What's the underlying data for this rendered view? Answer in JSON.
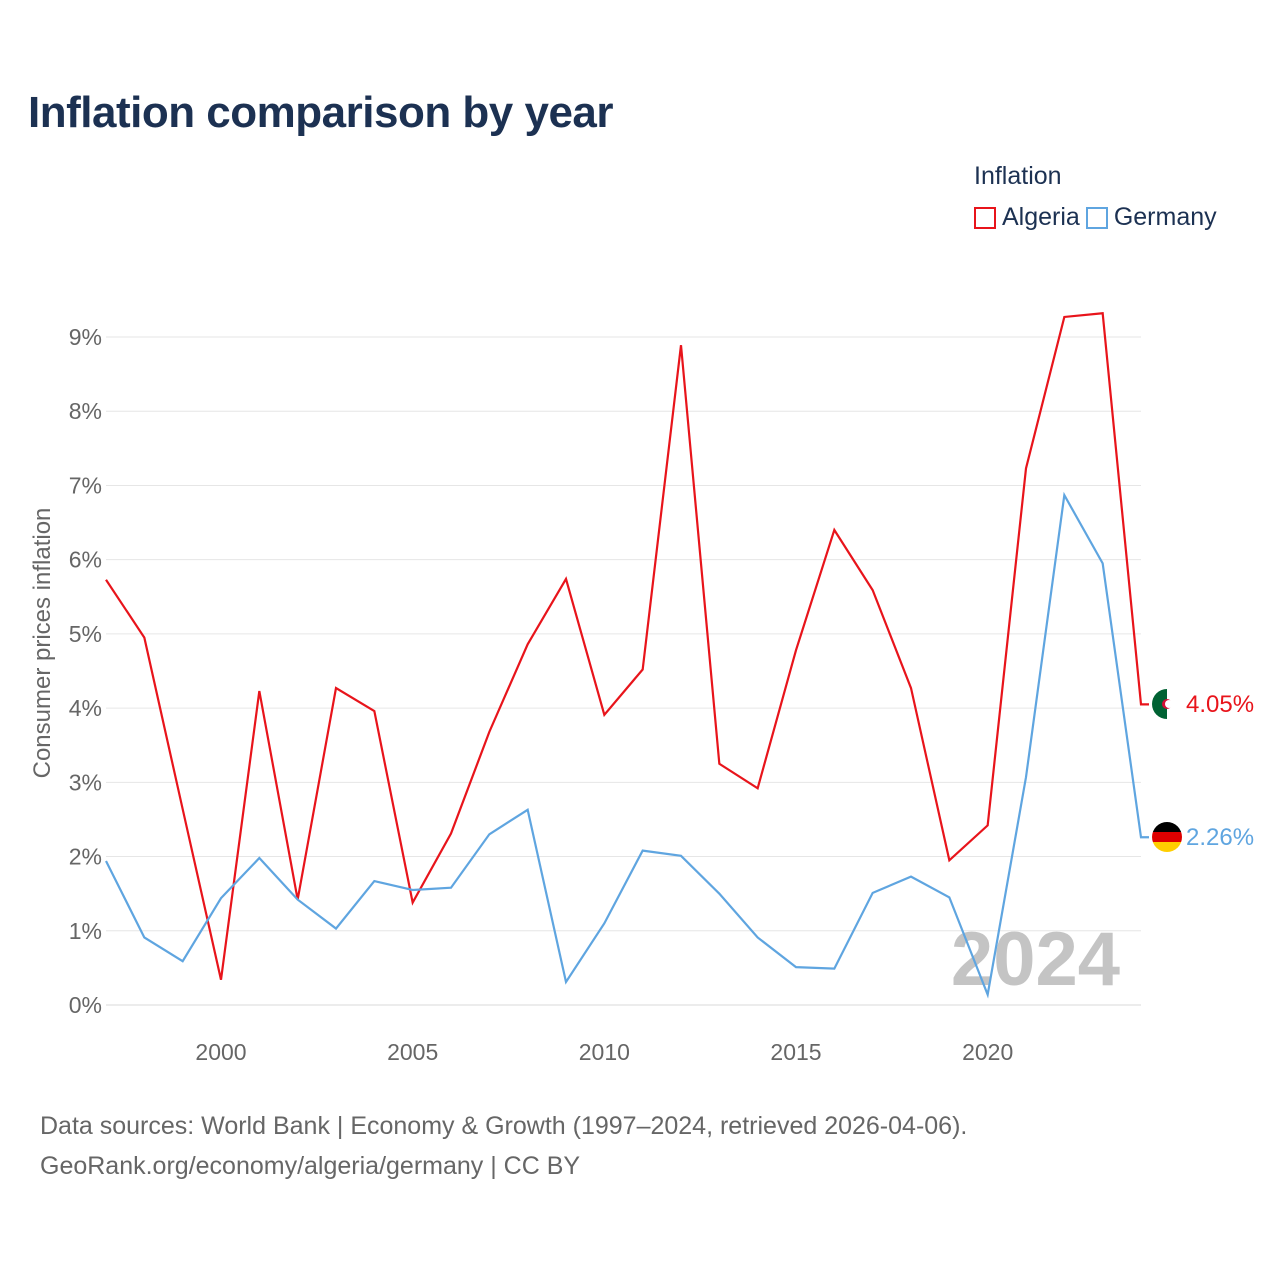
{
  "title": "Inflation comparison by year",
  "legend": {
    "title": "Inflation",
    "items": [
      {
        "label": "Algeria",
        "color": "#e8141b"
      },
      {
        "label": "Germany",
        "color": "#5fa5e0"
      }
    ]
  },
  "source": {
    "line1": "Data sources: World Bank | Economy & Growth (1997–2024, retrieved 2026-04-06).",
    "line2": "GeoRank.org/economy/algeria/germany | CC BY"
  },
  "chart_data": {
    "type": "line",
    "title": "Inflation comparison by year",
    "ylabel": "Consumer prices inflation",
    "xlabel": "",
    "xlim": [
      1997,
      2024
    ],
    "ylim": [
      0,
      9
    ],
    "x_ticks": [
      2000,
      2005,
      2010,
      2015,
      2020
    ],
    "y_ticks": [
      0,
      1,
      2,
      3,
      4,
      5,
      6,
      7,
      8,
      9
    ],
    "y_tick_labels": [
      "0%",
      "1%",
      "2%",
      "3%",
      "4%",
      "5%",
      "6%",
      "7%",
      "8%",
      "9%"
    ],
    "grid": true,
    "watermark": "2024",
    "x": [
      1997,
      1998,
      1999,
      2000,
      2001,
      2002,
      2003,
      2004,
      2005,
      2006,
      2007,
      2008,
      2009,
      2010,
      2011,
      2012,
      2013,
      2014,
      2015,
      2016,
      2017,
      2018,
      2019,
      2020,
      2021,
      2022,
      2023,
      2024
    ],
    "series": [
      {
        "name": "Algeria",
        "color": "#e8141b",
        "end_label": "4.05%",
        "flag": "algeria-flag-icon",
        "values": [
          5.73,
          4.95,
          2.64,
          0.34,
          4.23,
          1.42,
          4.27,
          3.96,
          1.38,
          2.31,
          3.68,
          4.86,
          5.74,
          3.91,
          4.52,
          8.89,
          3.25,
          2.92,
          4.78,
          6.4,
          5.59,
          4.27,
          1.95,
          2.42,
          7.23,
          9.27,
          9.32,
          4.05
        ]
      },
      {
        "name": "Germany",
        "color": "#5fa5e0",
        "end_label": "2.26%",
        "flag": "germany-flag-icon",
        "values": [
          1.94,
          0.91,
          0.59,
          1.44,
          1.98,
          1.42,
          1.03,
          1.67,
          1.55,
          1.58,
          2.3,
          2.63,
          0.31,
          1.1,
          2.08,
          2.01,
          1.5,
          0.91,
          0.51,
          0.49,
          1.51,
          1.73,
          1.45,
          0.14,
          3.07,
          6.87,
          5.95,
          2.26
        ]
      }
    ]
  }
}
